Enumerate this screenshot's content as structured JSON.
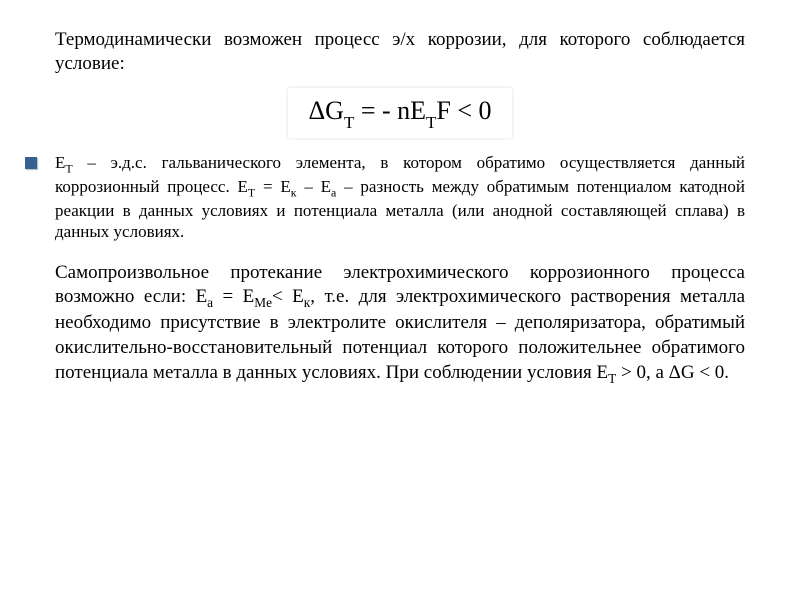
{
  "intro_text": "Термодинамически возможен процесс э/х коррозии, для которого соблюдается условие:",
  "equation": {
    "text": "ΔGᴛ = - nEᴛF < 0",
    "html": "ΔG<span class=\"sub\">T</span> = - nE<span class=\"sub\">T</span>F < 0",
    "background_color": "#ffffff",
    "font_size": 26,
    "text_color": "#000000"
  },
  "bullet": {
    "color": "#376092",
    "size": 12,
    "text": "Eᴛ – э.д.с. гальванического элемента, в котором обратимо осуществляется данный коррозионный процесс. Eᴛ = Eₖ – Eₐ – разность между обратимым потенциалом катодной реакции в данных условиях и потенциала металла (или анодной составляющей сплава) в данных условиях.",
    "html": "E<sub>T</sub> – э.д.с. гальванического элемента, в котором обратимо осуществляется данный коррозионный процесс. E<sub>T</sub> = E<sub>к</sub> – E<sub>а</sub> – разность между обратимым потенциалом катодной реакции в данных условиях и потенциала металла (или анодной составляющей сплава) в данных условиях."
  },
  "main_para": {
    "text": "Самопроизвольное протекание электрохимического коррозионного процесса возможно если: Eₐ = EMe< Eₖ, т.е. для электрохимического растворения металла необходимо присутствие в электролите окислителя – деполяризатора, обратимый окислительно-восстановительный потенциал которого положительнее обратимого потенциала металла в данных условиях. При соблюдении условия Eᴛ > 0, а ΔG < 0.",
    "html": "Самопроизвольное протекание электрохимического коррозионного процесса возможно если: E<sub>а</sub> = E<sub>Me</sub>&lt; E<sub>к</sub>, т.е. для электрохимического растворения металла необходимо присутствие в электролите окислителя – деполяризатора, обратимый окислительно-восстановительный потенциал которого положительнее обратимого потенциала металла в данных условиях. При соблюдении условия E<sub>T</sub> &gt; 0, а ΔG &lt; 0."
  },
  "typography": {
    "font_family": "Times New Roman",
    "body_font_size": 19,
    "bullet_font_size": 17,
    "text_color": "#000000",
    "background_color": "#ffffff"
  }
}
